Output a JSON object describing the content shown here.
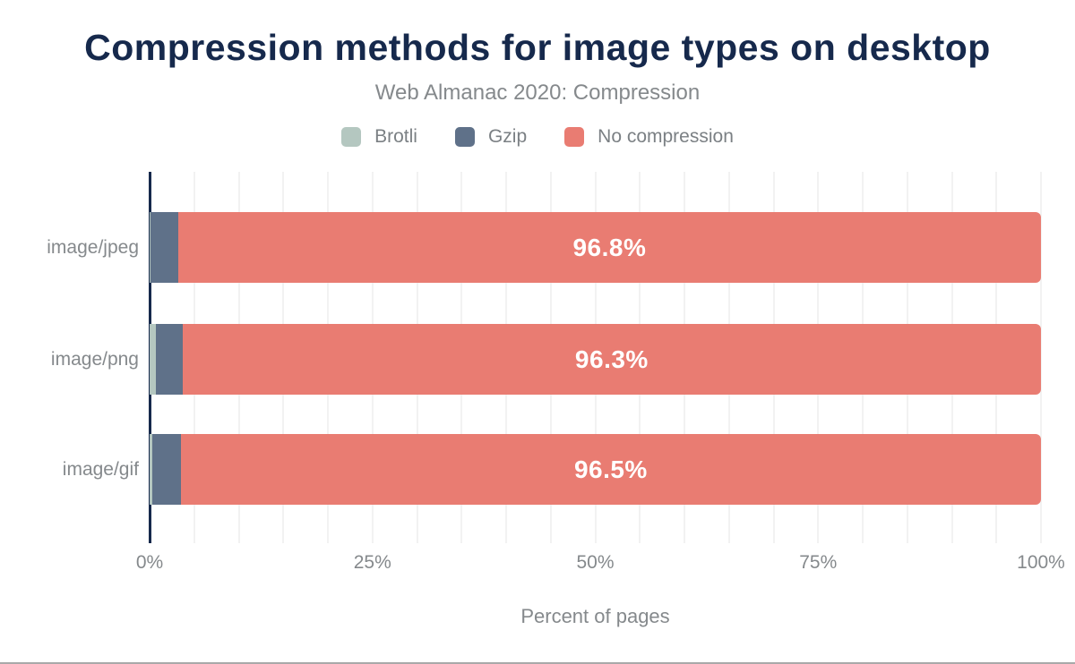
{
  "page": {
    "title": "Compression methods for image types on desktop",
    "subtitle": "Web Almanac 2020: Compression"
  },
  "legend": {
    "position": "top",
    "items": [
      {
        "label": "Brotli",
        "color": "#b4c7c0",
        "pattern": "dots"
      },
      {
        "label": "Gzip",
        "color": "#5f7189",
        "pattern": "solid"
      },
      {
        "label": "No compression",
        "color": "#e97c72",
        "pattern": "solid"
      }
    ]
  },
  "chart_data": {
    "type": "bar",
    "orientation": "horizontal",
    "stacked": true,
    "title": "Compression methods for image types on desktop",
    "subtitle": "Web Almanac 2020: Compression",
    "categories": [
      "image/jpeg",
      "image/png",
      "image/gif"
    ],
    "series": [
      {
        "name": "Brotli",
        "color": "#b4c7c0",
        "values": [
          0.1,
          0.7,
          0.3
        ]
      },
      {
        "name": "Gzip",
        "color": "#5f7189",
        "values": [
          3.1,
          3.0,
          3.2
        ]
      },
      {
        "name": "No compression",
        "color": "#e97c72",
        "values": [
          96.8,
          96.3,
          96.5
        ]
      }
    ],
    "bar_labels": [
      "96.8%",
      "96.3%",
      "96.5%"
    ],
    "xlabel": "Percent of pages",
    "x_ticks": [
      {
        "value": 0,
        "label": "0%"
      },
      {
        "value": 25,
        "label": "25%"
      },
      {
        "value": 50,
        "label": "50%"
      },
      {
        "value": 75,
        "label": "75%"
      },
      {
        "value": 100,
        "label": "100%"
      }
    ],
    "xlim": [
      0,
      100
    ],
    "grid": {
      "vertical_every_percent": 5,
      "color": "#f2f2f2"
    },
    "legend_position": "top",
    "colors": {
      "title": "#16294c",
      "axis_line": "#16294c",
      "text_gray": "#85898c",
      "bar_value_label": "#ffffff"
    }
  }
}
